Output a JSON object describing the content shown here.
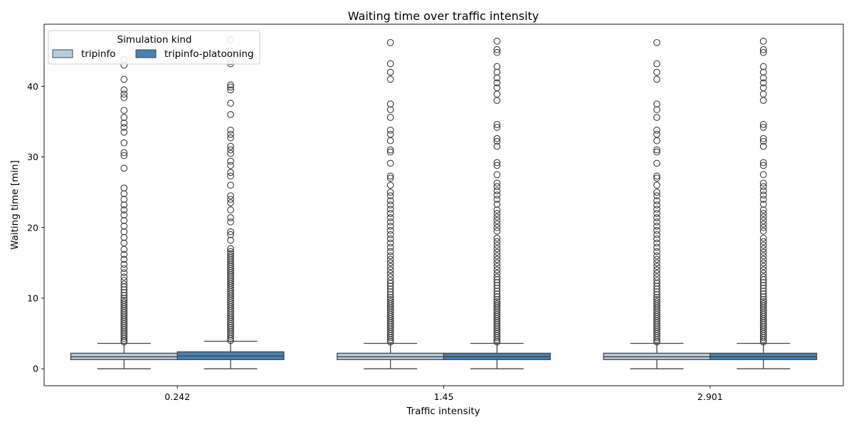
{
  "chart_data": {
    "type": "box",
    "title": "Waiting time over traffic intensity",
    "xlabel": "Traffic intensity",
    "ylabel": "Waiting time [min]",
    "ylim": [
      -2.4,
      48.8
    ],
    "yticks": [
      0,
      10,
      20,
      30,
      40
    ],
    "categories": [
      "0.242",
      "1.45",
      "2.901"
    ],
    "legend": {
      "title": "Simulation kind",
      "placement": "top-left"
    },
    "series": [
      {
        "name": "tripinfo",
        "color": "#b3cde3",
        "boxes": [
          {
            "whisker_low": 0,
            "q1": 1.3,
            "median": 1.7,
            "q3": 2.2,
            "whisker_high": 3.6,
            "outliers": [
              3.8,
              4.0,
              4.3,
              4.6,
              4.9,
              5.2,
              5.5,
              5.8,
              6.1,
              6.4,
              6.7,
              7.0,
              7.3,
              7.6,
              7.9,
              8.2,
              8.5,
              8.8,
              9.1,
              9.4,
              9.7,
              10.0,
              10.4,
              10.8,
              11.2,
              11.6,
              12.0,
              12.5,
              13.0,
              13.6,
              14.2,
              14.8,
              15.5,
              16.2,
              16.9,
              17.8,
              18.6,
              19.4,
              20.2,
              21.0,
              21.8,
              22.5,
              23.2,
              24.0,
              24.8,
              25.6,
              28.4,
              30.2,
              30.6,
              32.0,
              33.5,
              34.2,
              34.8,
              35.6,
              36.6,
              38.4,
              38.9,
              39.5,
              41.0,
              43.0,
              43.8,
              46.2
            ]
          },
          {
            "whisker_low": 0,
            "q1": 1.3,
            "median": 1.7,
            "q3": 2.2,
            "whisker_high": 3.6,
            "outliers": [
              3.8,
              4.1,
              4.4,
              4.7,
              5.0,
              5.3,
              5.6,
              5.9,
              6.2,
              6.5,
              6.8,
              7.1,
              7.4,
              7.7,
              8.0,
              8.3,
              8.6,
              8.9,
              9.2,
              9.5,
              9.8,
              10.1,
              10.5,
              10.9,
              11.3,
              11.7,
              12.1,
              12.5,
              13.0,
              13.5,
              14.0,
              14.5,
              15.0,
              15.5,
              16.0,
              16.6,
              17.2,
              17.8,
              18.4,
              19.0,
              19.6,
              20.2,
              20.8,
              21.4,
              22.0,
              22.6,
              23.2,
              23.8,
              24.5,
              25.0,
              26.0,
              27.0,
              27.3,
              29.1,
              30.7,
              31.0,
              32.3,
              33.2,
              33.8,
              35.6,
              36.7,
              37.5,
              41.0,
              42.0,
              43.2,
              46.2
            ]
          },
          {
            "whisker_low": 0,
            "q1": 1.3,
            "median": 1.7,
            "q3": 2.2,
            "whisker_high": 3.6,
            "outliers": [
              3.8,
              4.1,
              4.4,
              4.7,
              5.0,
              5.3,
              5.6,
              5.9,
              6.2,
              6.5,
              6.8,
              7.1,
              7.4,
              7.7,
              8.0,
              8.3,
              8.6,
              8.9,
              9.2,
              9.5,
              9.8,
              10.1,
              10.5,
              10.9,
              11.3,
              11.7,
              12.1,
              12.5,
              13.0,
              13.5,
              14.0,
              14.5,
              15.0,
              15.5,
              16.0,
              16.6,
              17.2,
              17.8,
              18.4,
              19.0,
              19.6,
              20.2,
              20.8,
              21.4,
              22.0,
              22.6,
              23.2,
              23.8,
              24.5,
              25.0,
              26.0,
              27.0,
              27.3,
              29.1,
              30.7,
              31.0,
              32.3,
              33.2,
              33.8,
              35.6,
              36.7,
              37.5,
              41.0,
              42.0,
              43.2,
              46.2
            ]
          }
        ]
      },
      {
        "name": "tripinfo-platooning",
        "color": "#4682b4",
        "boxes": [
          {
            "whisker_low": 0,
            "q1": 1.3,
            "median": 1.8,
            "q3": 2.4,
            "whisker_high": 3.9,
            "outliers": [
              4.0,
              4.3,
              4.6,
              4.9,
              5.2,
              5.5,
              5.8,
              6.1,
              6.4,
              6.7,
              7.0,
              7.3,
              7.6,
              7.9,
              8.2,
              8.5,
              8.8,
              9.1,
              9.4,
              9.7,
              10.0,
              10.3,
              10.6,
              10.9,
              11.2,
              11.5,
              11.8,
              12.1,
              12.4,
              12.7,
              13.0,
              13.3,
              13.6,
              13.9,
              14.2,
              14.5,
              14.8,
              15.1,
              15.4,
              15.7,
              16.0,
              16.3,
              16.6,
              17.0,
              18.2,
              19.0,
              19.4,
              20.8,
              21.4,
              22.5,
              23.5,
              24.0,
              24.5,
              26.0,
              27.3,
              27.8,
              28.8,
              29.4,
              30.5,
              31.0,
              31.5,
              32.7,
              33.2,
              33.8,
              36.0,
              37.6,
              39.5,
              39.9,
              40.2,
              43.2,
              43.5,
              45.0,
              46.6
            ]
          },
          {
            "whisker_low": 0,
            "q1": 1.3,
            "median": 1.7,
            "q3": 2.2,
            "whisker_high": 3.6,
            "outliers": [
              3.8,
              4.1,
              4.4,
              4.7,
              5.0,
              5.3,
              5.6,
              5.9,
              6.2,
              6.5,
              6.8,
              7.1,
              7.4,
              7.7,
              8.0,
              8.3,
              8.6,
              8.9,
              9.2,
              9.5,
              9.8,
              10.2,
              10.6,
              11.0,
              11.4,
              11.8,
              12.2,
              12.6,
              13.0,
              13.5,
              14.0,
              14.5,
              15.0,
              15.5,
              16.0,
              16.5,
              17.0,
              17.5,
              18.0,
              18.5,
              19.5,
              20.0,
              20.5,
              21.0,
              21.5,
              22.0,
              22.5,
              23.3,
              24.0,
              24.6,
              25.2,
              25.8,
              26.3,
              27.5,
              28.8,
              29.2,
              31.5,
              32.2,
              32.6,
              34.2,
              34.6,
              38.0,
              38.9,
              39.8,
              40.5,
              41.2,
              42.0,
              42.8,
              44.8,
              45.2,
              46.4
            ]
          },
          {
            "whisker_low": 0,
            "q1": 1.3,
            "median": 1.7,
            "q3": 2.2,
            "whisker_high": 3.6,
            "outliers": [
              3.8,
              4.1,
              4.4,
              4.7,
              5.0,
              5.3,
              5.6,
              5.9,
              6.2,
              6.5,
              6.8,
              7.1,
              7.4,
              7.7,
              8.0,
              8.3,
              8.6,
              8.9,
              9.2,
              9.5,
              9.8,
              10.2,
              10.6,
              11.0,
              11.4,
              11.8,
              12.2,
              12.6,
              13.0,
              13.5,
              14.0,
              14.5,
              15.0,
              15.5,
              16.0,
              16.5,
              17.0,
              17.5,
              18.0,
              18.5,
              19.5,
              20.0,
              20.5,
              21.0,
              21.5,
              22.0,
              22.5,
              23.3,
              24.0,
              24.6,
              25.2,
              25.8,
              26.3,
              27.5,
              28.8,
              29.2,
              31.5,
              32.2,
              32.6,
              34.2,
              34.6,
              38.0,
              38.9,
              39.8,
              40.5,
              41.2,
              42.0,
              42.8,
              44.8,
              45.2,
              46.4
            ]
          }
        ]
      }
    ]
  }
}
